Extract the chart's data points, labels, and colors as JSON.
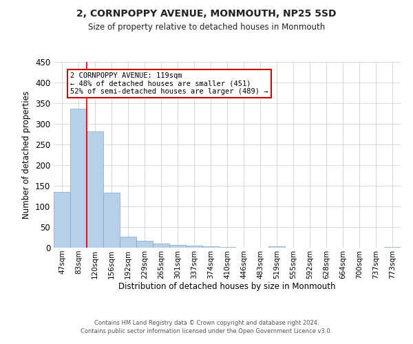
{
  "title": "2, CORNPOPPY AVENUE, MONMOUTH, NP25 5SD",
  "subtitle": "Size of property relative to detached houses in Monmouth",
  "xlabel": "Distribution of detached houses by size in Monmouth",
  "ylabel": "Number of detached properties",
  "bar_labels": [
    "47sqm",
    "83sqm",
    "120sqm",
    "156sqm",
    "192sqm",
    "229sqm",
    "265sqm",
    "301sqm",
    "337sqm",
    "374sqm",
    "410sqm",
    "446sqm",
    "483sqm",
    "519sqm",
    "555sqm",
    "592sqm",
    "628sqm",
    "664sqm",
    "700sqm",
    "737sqm",
    "773sqm"
  ],
  "bar_values": [
    135,
    336,
    281,
    133,
    27,
    16,
    10,
    6,
    5,
    4,
    1,
    0,
    0,
    3,
    0,
    0,
    0,
    0,
    0,
    0,
    2
  ],
  "bar_color": "#b8cfe8",
  "bar_edge_color": "#7ba7cc",
  "ylim": [
    0,
    450
  ],
  "yticks": [
    0,
    50,
    100,
    150,
    200,
    250,
    300,
    350,
    400,
    450
  ],
  "vline_x_index": 2,
  "vline_color": "#cc0000",
  "annotation_title": "2 CORNPOPPY AVENUE: 119sqm",
  "annotation_line1": "← 48% of detached houses are smaller (451)",
  "annotation_line2": "52% of semi-detached houses are larger (489) →",
  "annotation_box_color": "#ffffff",
  "annotation_box_edge": "#cc0000",
  "footer1": "Contains HM Land Registry data © Crown copyright and database right 2024.",
  "footer2": "Contains public sector information licensed under the Open Government Licence v3.0.",
  "bg_color": "#ffffff",
  "grid_color": "#cccccc"
}
